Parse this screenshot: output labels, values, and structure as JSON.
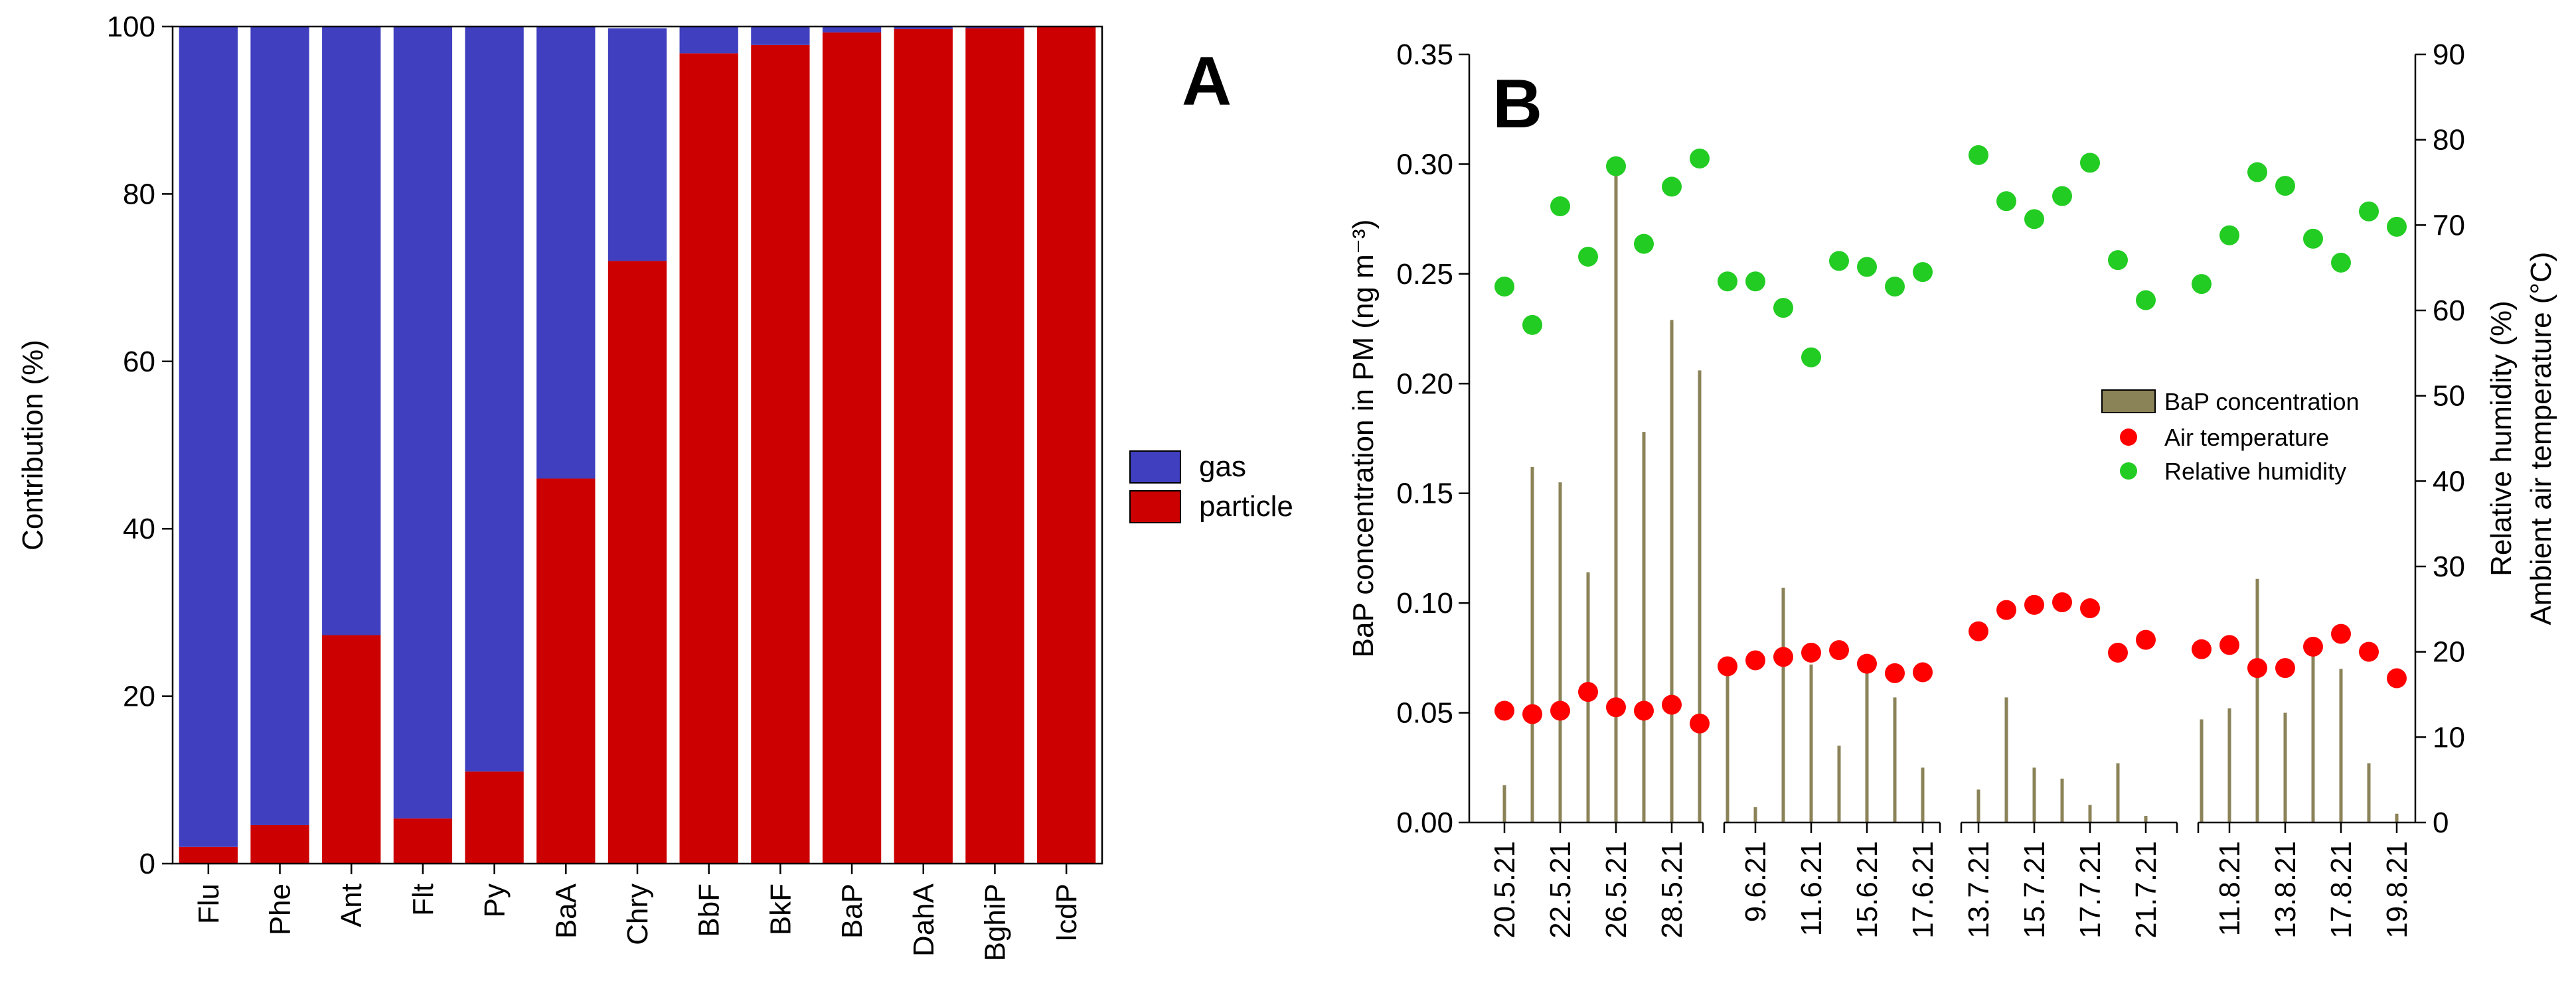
{
  "panel_a": {
    "letter": "A",
    "ylabel": "Contribution (%)",
    "legend": {
      "gas": "gas",
      "particle": "particle"
    }
  },
  "panel_b": {
    "letter": "B",
    "ylabel_left": "BaP concentration in PM (ng m⁻³)",
    "ylabel_right_1": "Relative humidity (%)",
    "ylabel_right_2": "Ambient air temperature (°C)",
    "legend": {
      "bap": "BaP concentration",
      "temp": "Air temperature",
      "rh": "Relative humidity"
    }
  },
  "colors": {
    "gas": "#3f3fbf",
    "particle": "#cc0000",
    "bap_bar": "#8b8358",
    "temp": "#ff0000",
    "rh": "#22cc22"
  },
  "chart_data": [
    {
      "type": "bar",
      "stacked": true,
      "title": "A",
      "xlabel": "",
      "ylabel": "Contribution (%)",
      "ylim": [
        0,
        100
      ],
      "yticks": [
        0,
        20,
        40,
        60,
        80,
        100
      ],
      "categories": [
        "Flu",
        "Phe",
        "Ant",
        "Flt",
        "Py",
        "BaA",
        "Chry",
        "BbF",
        "BkF",
        "BaP",
        "DahA",
        "BghiP",
        "IcdP"
      ],
      "series": [
        {
          "name": "particle",
          "values": [
            2,
            4.6,
            27.3,
            5.4,
            11,
            46,
            72,
            96.8,
            97.8,
            99.3,
            99.7,
            99.8,
            100
          ]
        },
        {
          "name": "gas",
          "values": [
            98,
            95.4,
            72.7,
            94.6,
            89,
            54,
            27.8,
            3.2,
            2.2,
            0.7,
            0.3,
            0.2,
            0
          ]
        }
      ],
      "legend_position": "right"
    },
    {
      "type": "bar+scatter",
      "title": "B",
      "ylabel": "BaP concentration in PM (ng m⁻³)",
      "ylim": [
        0,
        0.35
      ],
      "yticks": [
        0.0,
        0.05,
        0.1,
        0.15,
        0.2,
        0.25,
        0.3,
        0.35
      ],
      "y2label": "Relative humidity (%) / Ambient air temperature (°C)",
      "y2lim": [
        0,
        90
      ],
      "y2ticks": [
        0,
        10,
        20,
        30,
        40,
        50,
        60,
        70,
        80,
        90
      ],
      "x_tick_labels": [
        "20.5.21",
        "22.5.21",
        "26.5.21",
        "28.5.21",
        "9.6.21",
        "11.6.21",
        "15.6.21",
        "17.6.21",
        "13.7.21",
        "15.7.21",
        "17.7.21",
        "21.7.21",
        "11.8.21",
        "13.8.21",
        "17.8.21",
        "19.8.21"
      ],
      "x_tick_slots": [
        0,
        2,
        4,
        6,
        9,
        11,
        13,
        15,
        17,
        19,
        21,
        23,
        26,
        28,
        30,
        32
      ],
      "x_group_breaks": [
        7.5,
        16,
        24.5
      ],
      "n_slots": 33,
      "series": [
        {
          "name": "BaP concentration",
          "kind": "bar",
          "axis": "left",
          "x": [
            0,
            1,
            2,
            3,
            4,
            5,
            6,
            7,
            8,
            9,
            10,
            11,
            12,
            13,
            14,
            15,
            17,
            18,
            19,
            20,
            21,
            22,
            23,
            25,
            26,
            27,
            28,
            29,
            30,
            31,
            32
          ],
          "values": [
            0.017,
            0.162,
            0.155,
            0.114,
            0.298,
            0.178,
            0.229,
            0.206,
            0.07,
            0.007,
            0.107,
            0.072,
            0.035,
            0.075,
            0.057,
            0.025,
            0.015,
            0.057,
            0.025,
            0.02,
            0.008,
            0.027,
            0.003,
            0.047,
            0.052,
            0.111,
            0.05,
            0.082,
            0.07,
            0.027,
            0.004
          ]
        },
        {
          "name": "Air temperature",
          "kind": "scatter",
          "axis": "right",
          "x": [
            0,
            1,
            2,
            3,
            4,
            5,
            6,
            7,
            8,
            9,
            10,
            11,
            12,
            13,
            14,
            15,
            17,
            18,
            19,
            20,
            21,
            22,
            23,
            25,
            26,
            27,
            28,
            29,
            30,
            31,
            32
          ],
          "values": [
            13.1,
            12.7,
            13.1,
            15.3,
            13.5,
            13.1,
            13.8,
            11.6,
            18.3,
            19.0,
            19.4,
            19.9,
            20.2,
            18.6,
            17.5,
            17.6,
            22.4,
            24.9,
            25.5,
            25.8,
            25.1,
            19.9,
            21.4,
            20.3,
            20.8,
            18.1,
            18.1,
            20.6,
            22.1,
            20.0,
            16.9
          ],
          "values_order_note": "paired with x"
        },
        {
          "name": "Relative humidity",
          "kind": "scatter",
          "axis": "right",
          "x": [
            0,
            1,
            2,
            3,
            4,
            5,
            6,
            7,
            8,
            9,
            10,
            11,
            12,
            13,
            14,
            15,
            17,
            18,
            19,
            20,
            21,
            22,
            23,
            25,
            26,
            27,
            28,
            29,
            30,
            31,
            32
          ],
          "values": [
            62.8,
            58.3,
            72.2,
            66.3,
            76.9,
            67.8,
            74.5,
            77.8,
            63.4,
            63.4,
            60.3,
            54.5,
            65.8,
            65.1,
            62.8,
            64.5,
            78.2,
            72.8,
            70.7,
            73.4,
            77.3,
            65.9,
            61.2,
            63.1,
            68.8,
            76.2,
            74.6,
            68.4,
            65.6,
            71.6,
            69.8
          ]
        }
      ],
      "legend_position": "right-middle"
    }
  ]
}
